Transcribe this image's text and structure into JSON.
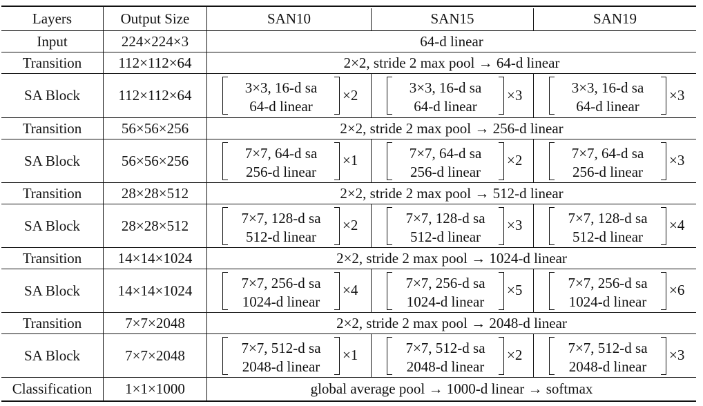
{
  "table": {
    "headers": [
      "Layers",
      "Output Size",
      "SAN10",
      "SAN15",
      "SAN19"
    ],
    "rows": [
      {
        "type": "span",
        "layer": "Input",
        "size": "224×224×3",
        "text": "64-d linear"
      },
      {
        "type": "span",
        "layer": "Transition",
        "size": "112×112×64",
        "text": "2×2, stride 2 max pool → 64-d linear"
      },
      {
        "type": "block",
        "layer": "SA Block",
        "size": "112×112×64",
        "line1": "3×3, 16-d sa",
        "line2": "64-d linear",
        "mults": [
          "×2",
          "×3",
          "×3"
        ]
      },
      {
        "type": "span",
        "layer": "Transition",
        "size": "56×56×256",
        "text": "2×2, stride 2 max pool → 256-d linear"
      },
      {
        "type": "block",
        "layer": "SA Block",
        "size": "56×56×256",
        "line1": "7×7, 64-d sa",
        "line2": "256-d linear",
        "mults": [
          "×1",
          "×2",
          "×3"
        ]
      },
      {
        "type": "span",
        "layer": "Transition",
        "size": "28×28×512",
        "text": "2×2, stride 2 max pool → 512-d linear"
      },
      {
        "type": "block",
        "layer": "SA Block",
        "size": "28×28×512",
        "line1": "7×7, 128-d sa",
        "line2": "512-d linear",
        "mults": [
          "×2",
          "×3",
          "×4"
        ]
      },
      {
        "type": "span",
        "layer": "Transition",
        "size": "14×14×1024",
        "text": "2×2, stride 2 max pool → 1024-d linear"
      },
      {
        "type": "block",
        "layer": "SA Block",
        "size": "14×14×1024",
        "line1": "7×7, 256-d sa",
        "line2": "1024-d linear",
        "mults": [
          "×4",
          "×5",
          "×6"
        ]
      },
      {
        "type": "span",
        "layer": "Transition",
        "size": "7×7×2048",
        "text": "2×2, stride 2 max pool → 2048-d linear"
      },
      {
        "type": "block",
        "layer": "SA Block",
        "size": "7×7×2048",
        "line1": "7×7, 512-d sa",
        "line2": "2048-d linear",
        "mults": [
          "×1",
          "×2",
          "×3"
        ]
      },
      {
        "type": "span",
        "layer": "Classification",
        "size": "1×1×1000",
        "text": "global average pool → 1000-d linear → softmax"
      }
    ]
  }
}
